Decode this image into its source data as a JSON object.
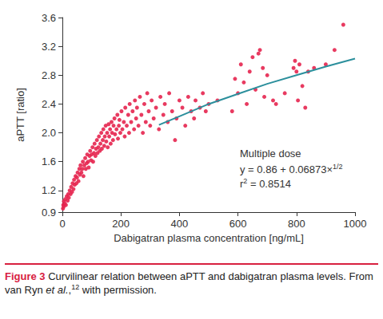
{
  "chart_data": {
    "type": "scatter",
    "x_label": "Dabigatran plasma concentration [ng/mL]",
    "y_label": "aPTT [ratio]",
    "xlim": [
      0,
      1000
    ],
    "xticks": [
      0,
      200,
      400,
      600,
      800,
      1000
    ],
    "ylim": [
      0.9,
      3.6
    ],
    "yticks": [
      0.9,
      1.2,
      1.6,
      {
        "value": 2,
        "label": "2.0"
      },
      2.4,
      2.8,
      3.2,
      3.6
    ],
    "grid": false,
    "annotations": [
      [
        {
          "text": "Multiple dose"
        }
      ],
      [
        {
          "text": "y = 0.86 + 0.06873×"
        },
        {
          "text": "1/2",
          "format": "superscript"
        }
      ],
      [
        {
          "text": "r"
        },
        {
          "text": "2",
          "format": "superscript"
        },
        {
          "text": " = 0.8514"
        }
      ]
    ],
    "series": [
      {
        "type": "scatter",
        "color": "#e5254f",
        "marker": "circle",
        "x": [
          2,
          3,
          5,
          5,
          8,
          10,
          12,
          15,
          18,
          20,
          22,
          25,
          28,
          30,
          33,
          35,
          38,
          40,
          42,
          45,
          48,
          50,
          52,
          55,
          58,
          60,
          62,
          65,
          68,
          70,
          72,
          75,
          78,
          80,
          83,
          85,
          88,
          90,
          93,
          95,
          98,
          100,
          103,
          105,
          108,
          110,
          113,
          115,
          118,
          120,
          123,
          125,
          128,
          130,
          133,
          135,
          138,
          140,
          143,
          145,
          148,
          150,
          153,
          155,
          158,
          160,
          163,
          165,
          168,
          170,
          173,
          175,
          178,
          180,
          185,
          188,
          190,
          193,
          195,
          198,
          202,
          205,
          210,
          213,
          215,
          220,
          225,
          228,
          230,
          235,
          240,
          245,
          248,
          252,
          255,
          260,
          265,
          270,
          275,
          280,
          285,
          290,
          295,
          300,
          305,
          312,
          320,
          330,
          335,
          345,
          350,
          360,
          365,
          375,
          385,
          390,
          400,
          410,
          420,
          430,
          440,
          450,
          455,
          470,
          480,
          490,
          500,
          530,
          580,
          590,
          600,
          610,
          620,
          630,
          640,
          650,
          660,
          670,
          675,
          685,
          690,
          700,
          720,
          730,
          760,
          790,
          795,
          800,
          805,
          810,
          820,
          830,
          840,
          860,
          900,
          930,
          960
        ],
        "values": [
          0.95,
          1.0,
          0.98,
          1.05,
          1.02,
          1.08,
          1.0,
          1.12,
          1.06,
          1.15,
          1.1,
          1.2,
          1.15,
          1.25,
          1.18,
          1.3,
          1.22,
          1.35,
          1.28,
          1.4,
          1.3,
          1.38,
          1.45,
          1.33,
          1.5,
          1.42,
          1.55,
          1.45,
          1.5,
          1.6,
          1.4,
          1.55,
          1.65,
          1.5,
          1.58,
          1.7,
          1.6,
          1.52,
          1.68,
          1.75,
          1.62,
          1.7,
          1.8,
          1.6,
          1.72,
          1.85,
          1.68,
          1.78,
          1.9,
          1.72,
          1.8,
          1.95,
          1.75,
          1.85,
          2.0,
          1.78,
          1.9,
          2.05,
          1.82,
          1.95,
          2.1,
          1.88,
          2.0,
          1.8,
          2.12,
          1.95,
          2.05,
          1.85,
          2.15,
          2.0,
          1.9,
          2.1,
          2.2,
          1.98,
          2.05,
          2.25,
          1.92,
          2.1,
          2.18,
          2.0,
          2.3,
          2.05,
          2.15,
          1.95,
          2.35,
          2.1,
          2.25,
          2.0,
          2.4,
          2.15,
          2.3,
          2.05,
          2.45,
          2.2,
          2.35,
          2.1,
          2.5,
          2.25,
          2.0,
          2.4,
          2.15,
          2.55,
          2.3,
          2.1,
          2.45,
          2.2,
          2.35,
          2.05,
          2.5,
          2.25,
          2.4,
          2.15,
          2.55,
          2.3,
          1.9,
          2.2,
          2.45,
          2.35,
          2.1,
          2.5,
          2.3,
          2.2,
          2.45,
          2.35,
          2.55,
          2.3,
          2.4,
          2.45,
          2.3,
          2.75,
          2.55,
          2.95,
          2.7,
          2.4,
          2.85,
          3.05,
          2.6,
          3.1,
          3.15,
          2.9,
          2.5,
          2.8,
          2.45,
          2.4,
          2.55,
          2.9,
          3.0,
          2.85,
          2.45,
          2.95,
          2.65,
          2.35,
          2.85,
          2.9,
          2.95,
          3.15,
          3.5
        ]
      },
      {
        "type": "line",
        "color": "#2b8f9c",
        "line_style": "solid",
        "x": [
          330,
          400,
          500,
          600,
          700,
          800,
          900,
          1000
        ],
        "values": [
          2.11,
          2.23,
          2.4,
          2.54,
          2.68,
          2.8,
          2.92,
          3.03
        ]
      }
    ]
  },
  "caption": [
    {
      "text": "Figure 3",
      "format": "bold"
    },
    {
      "text": " Curvilinear relation between aPTT and dabigatran plasma levels. From van Ryn "
    },
    {
      "text": "et al.",
      "format": "italic"
    },
    {
      "text": ","
    },
    {
      "text": "12",
      "format": "superscript"
    },
    {
      "text": " with permission."
    }
  ]
}
